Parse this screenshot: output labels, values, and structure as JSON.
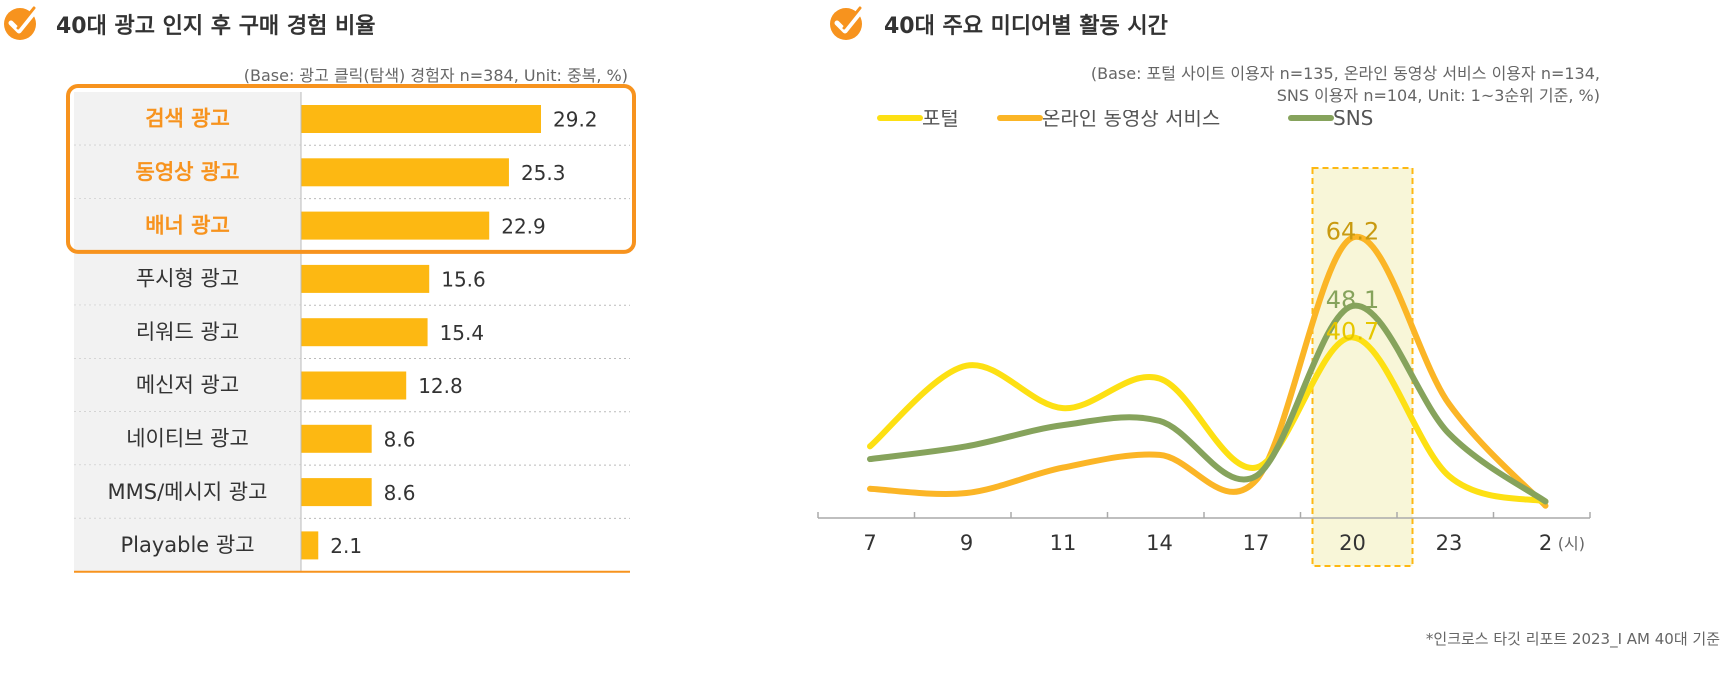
{
  "left": {
    "title": "40대 광고 인지 후 구매 경험 비율",
    "base_note": "(Base: 광고 클릭(탐색) 경험자 n=384, Unit: 중복, %)",
    "accent_color": "#f7931e",
    "bar_color": "#fdb812"
  },
  "right": {
    "title": "40대 주요 미디어별 활동 시간",
    "base_note_line1": "(Base: 포털 사이트 이용자 n=135, 온라인 동영상 서비스 이용자 n=134,",
    "base_note_line2": "SNS 이용자 n=104, Unit: 1~3순위 기준, %)",
    "x_unit": "(시)",
    "highlight_color": "#f8f6d8"
  },
  "footnote": "*인크로스 타깃 리포트 2023_I AM 40대 기준",
  "chart_data": [
    {
      "type": "bar",
      "title": "40대 광고 인지 후 구매 경험 비율",
      "categories": [
        "검색 광고",
        "동영상 광고",
        "배너 광고",
        "푸시형 광고",
        "리워드 광고",
        "메신저 광고",
        "네이티브 광고",
        "MMS/메시지 광고",
        "Playable 광고"
      ],
      "values": [
        29.2,
        25.3,
        22.9,
        15.6,
        15.4,
        12.8,
        8.6,
        8.6,
        2.1
      ],
      "value_labels": [
        "29.2",
        "25.3",
        "22.9",
        "15.6",
        "15.4",
        "12.8",
        "8.6",
        "8.6",
        "2.1"
      ],
      "highlighted": [
        "검색 광고",
        "동영상 광고",
        "배너 광고"
      ],
      "orientation": "horizontal",
      "xlim": [
        0,
        50
      ]
    },
    {
      "type": "line",
      "title": "40대 주요 미디어별 활동 시간",
      "x": [
        "7",
        "9",
        "11",
        "14",
        "17",
        "20",
        "23",
        "2"
      ],
      "ylim": [
        0,
        70
      ],
      "series": [
        {
          "name": "포털",
          "color": "#fde013",
          "values": [
            15,
            34,
            24,
            31,
            10,
            40.7,
            8,
            2
          ]
        },
        {
          "name": "온라인 동영상 서비스",
          "color": "#fbb526",
          "values": [
            5,
            4,
            10,
            13,
            7,
            64.2,
            25,
            1
          ]
        },
        {
          "name": "SNS",
          "color": "#86a35c",
          "values": [
            12,
            15,
            20,
            21,
            8,
            48.1,
            18,
            2
          ]
        }
      ],
      "annotations": [
        {
          "series": "온라인 동영상 서비스",
          "x": "20",
          "label": "64.2",
          "color": "#c99a10"
        },
        {
          "series": "SNS",
          "x": "20",
          "label": "48.1",
          "color": "#86a35c"
        },
        {
          "series": "포털",
          "x": "20",
          "label": "40.7",
          "color": "#e6c600"
        }
      ],
      "highlight_x": "20",
      "legend": "top-center",
      "grid": false
    }
  ]
}
